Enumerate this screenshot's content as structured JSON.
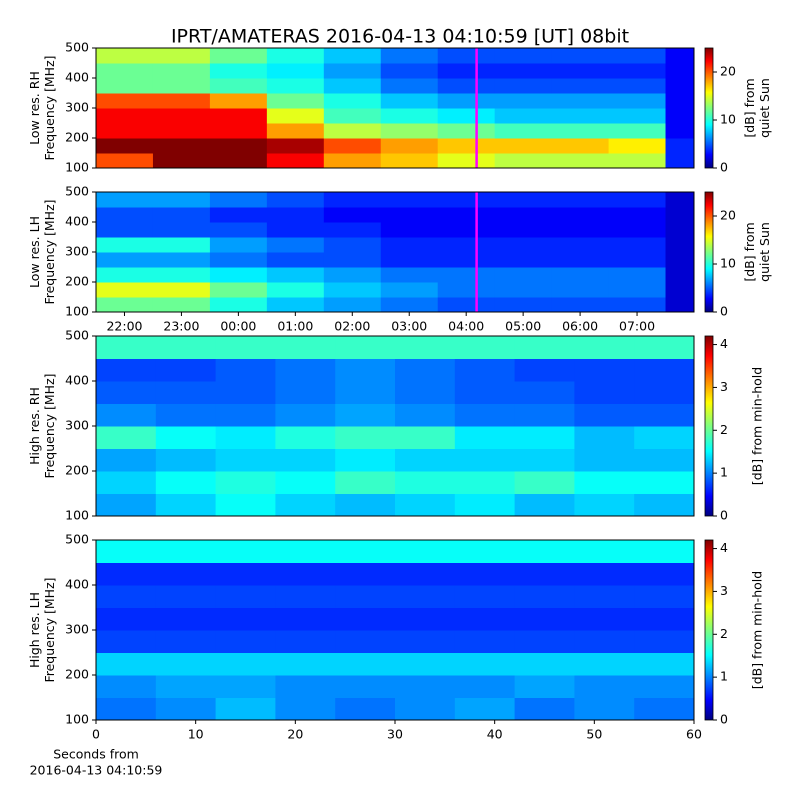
{
  "title": "IPRT/AMATERAS 2016-04-13 04:10:59 [UT]   08bit",
  "chart_data": [
    {
      "type": "heatmap",
      "ylabel": [
        "Low res. RH",
        "Frequency [MHz]"
      ],
      "cbar_label": [
        "[dB] from",
        "quiet Sun"
      ],
      "xlim": [
        21.5,
        32
      ],
      "ylim": [
        100,
        500
      ],
      "yticks": [
        100,
        200,
        300,
        400,
        500
      ],
      "clim": [
        0,
        25
      ],
      "cticks": [
        0,
        10,
        20
      ],
      "colormap": "jet",
      "vline": 28.183,
      "vline_color": "#ff00ff",
      "x_edges": [
        21.5,
        22.5,
        23.5,
        24.5,
        25.5,
        26.5,
        27.5,
        28.5,
        29.5,
        30.5,
        31.5,
        32
      ],
      "y_edges": [
        100,
        150,
        200,
        250,
        300,
        350,
        400,
        450,
        500
      ],
      "z": [
        [
          20,
          25,
          25,
          22,
          18,
          17,
          15,
          14,
          14,
          14,
          4
        ],
        [
          25,
          25,
          25,
          24,
          20,
          18,
          17,
          17,
          17,
          16,
          4
        ],
        [
          22,
          22,
          22,
          18,
          14,
          13,
          12,
          11,
          11,
          11,
          3
        ],
        [
          22,
          22,
          22,
          15,
          11,
          10,
          9,
          8,
          8,
          8,
          3
        ],
        [
          20,
          20,
          18,
          12,
          10,
          8,
          7,
          7,
          7,
          7,
          3
        ],
        [
          12,
          12,
          11,
          10,
          8,
          6,
          5,
          5,
          5,
          5,
          3
        ],
        [
          12,
          12,
          10,
          9,
          7,
          5,
          4,
          4,
          4,
          4,
          3
        ],
        [
          14,
          14,
          12,
          10,
          8,
          6,
          5,
          5,
          5,
          5,
          3
        ]
      ]
    },
    {
      "type": "heatmap",
      "ylabel": [
        "Low res. LH",
        "Frequency [MHz]"
      ],
      "cbar_label": [
        "[dB] from",
        "quiet Sun"
      ],
      "xlim": [
        21.5,
        32
      ],
      "ylim": [
        100,
        500
      ],
      "yticks": [
        100,
        200,
        300,
        400,
        500
      ],
      "xticks": [
        {
          "value": 22,
          "label": "22:00"
        },
        {
          "value": 23,
          "label": "23:00"
        },
        {
          "value": 24,
          "label": "00:00"
        },
        {
          "value": 25,
          "label": "01:00"
        },
        {
          "value": 26,
          "label": "02:00"
        },
        {
          "value": 27,
          "label": "03:00"
        },
        {
          "value": 28,
          "label": "04:00"
        },
        {
          "value": 29,
          "label": "05:00"
        },
        {
          "value": 30,
          "label": "06:00"
        },
        {
          "value": 31,
          "label": "07:00"
        }
      ],
      "clim": [
        0,
        25
      ],
      "cticks": [
        0,
        10,
        20
      ],
      "colormap": "jet",
      "vline": 28.183,
      "vline_color": "#ff00ff",
      "x_edges": [
        21.5,
        22.5,
        23.5,
        24.5,
        25.5,
        26.5,
        27.5,
        28.5,
        29.5,
        30.5,
        31.5,
        32
      ],
      "y_edges": [
        100,
        150,
        200,
        250,
        300,
        350,
        400,
        450,
        500
      ],
      "z": [
        [
          12,
          12,
          10,
          8,
          7,
          6,
          5,
          5,
          5,
          5,
          2
        ],
        [
          15,
          15,
          12,
          10,
          8,
          7,
          6,
          6,
          6,
          6,
          2
        ],
        [
          10,
          10,
          9,
          8,
          7,
          6,
          6,
          6,
          6,
          6,
          2
        ],
        [
          7,
          7,
          6,
          5,
          5,
          4,
          4,
          4,
          4,
          4,
          2
        ],
        [
          10,
          10,
          7,
          6,
          5,
          4,
          4,
          4,
          4,
          4,
          2
        ],
        [
          5,
          5,
          5,
          4,
          4,
          3,
          3,
          3,
          3,
          3,
          2
        ],
        [
          5,
          5,
          4,
          4,
          3,
          3,
          3,
          3,
          3,
          3,
          2
        ],
        [
          7,
          7,
          6,
          5,
          4,
          4,
          4,
          4,
          4,
          4,
          2
        ]
      ]
    },
    {
      "type": "heatmap",
      "ylabel": [
        "High res. RH",
        "Frequency [MHz]"
      ],
      "cbar_label": [
        "[dB] from min-hold"
      ],
      "xlim": [
        0,
        60
      ],
      "ylim": [
        100,
        500
      ],
      "yticks": [
        100,
        200,
        300,
        400,
        500
      ],
      "clim": [
        0,
        4.2
      ],
      "cticks": [
        0,
        1,
        2,
        3,
        4
      ],
      "colormap": "jet",
      "x_edges": [
        0,
        6,
        12,
        18,
        24,
        30,
        36,
        42,
        48,
        54,
        60
      ],
      "y_edges": [
        100,
        150,
        200,
        250,
        300,
        350,
        400,
        450,
        500
      ],
      "z": [
        [
          1.2,
          1.4,
          1.6,
          1.4,
          1.3,
          1.4,
          1.5,
          1.3,
          1.4,
          1.3
        ],
        [
          1.4,
          1.6,
          1.7,
          1.6,
          1.8,
          1.7,
          1.7,
          1.8,
          1.6,
          1.6
        ],
        [
          1.2,
          1.3,
          1.4,
          1.4,
          1.5,
          1.4,
          1.4,
          1.4,
          1.3,
          1.3
        ],
        [
          1.8,
          1.6,
          1.5,
          1.7,
          1.8,
          1.8,
          1.5,
          1.5,
          1.3,
          1.4
        ],
        [
          1.1,
          1.0,
          1.0,
          1.1,
          1.2,
          1.1,
          1.0,
          1.0,
          0.9,
          0.9
        ],
        [
          0.9,
          0.9,
          0.9,
          1.0,
          1.1,
          1.0,
          0.9,
          0.9,
          0.8,
          0.8
        ],
        [
          0.8,
          0.8,
          0.9,
          1.0,
          1.1,
          1.0,
          0.9,
          0.8,
          0.8,
          0.8
        ],
        [
          1.8,
          1.8,
          1.8,
          1.8,
          1.8,
          1.8,
          1.8,
          1.8,
          1.8,
          1.8
        ]
      ]
    },
    {
      "type": "heatmap",
      "ylabel": [
        "High res. LH",
        "Frequency [MHz]"
      ],
      "cbar_label": [
        "[dB] from min-hold"
      ],
      "xlabel": [
        "Seconds from",
        "2016-04-13 04:10:59"
      ],
      "xlim": [
        0,
        60
      ],
      "ylim": [
        100,
        500
      ],
      "yticks": [
        100,
        200,
        300,
        400,
        500
      ],
      "xticks": [
        0,
        10,
        20,
        30,
        40,
        50,
        60
      ],
      "clim": [
        0,
        4.2
      ],
      "cticks": [
        0,
        1,
        2,
        3,
        4
      ],
      "colormap": "jet",
      "x_edges": [
        0,
        6,
        12,
        18,
        24,
        30,
        36,
        42,
        48,
        54,
        60
      ],
      "y_edges": [
        100,
        150,
        200,
        250,
        300,
        350,
        400,
        450,
        500
      ],
      "z": [
        [
          1.0,
          1.1,
          1.3,
          1.1,
          1.0,
          1.1,
          1.2,
          1.0,
          1.1,
          1.0
        ],
        [
          1.1,
          1.2,
          1.2,
          1.1,
          1.1,
          1.1,
          1.1,
          1.2,
          1.1,
          1.1
        ],
        [
          1.4,
          1.4,
          1.4,
          1.4,
          1.4,
          1.4,
          1.4,
          1.4,
          1.4,
          1.4
        ],
        [
          0.8,
          0.8,
          0.8,
          0.8,
          0.8,
          0.8,
          0.8,
          0.8,
          0.8,
          0.8
        ],
        [
          0.7,
          0.7,
          0.7,
          0.7,
          0.7,
          0.7,
          0.7,
          0.7,
          0.7,
          0.7
        ],
        [
          0.8,
          0.8,
          0.8,
          0.8,
          0.8,
          0.8,
          0.8,
          0.8,
          0.8,
          0.8
        ],
        [
          0.7,
          0.7,
          0.7,
          0.7,
          0.7,
          0.7,
          0.7,
          0.7,
          0.7,
          0.7
        ],
        [
          1.6,
          1.6,
          1.6,
          1.6,
          1.6,
          1.6,
          1.6,
          1.6,
          1.6,
          1.6
        ]
      ]
    }
  ]
}
